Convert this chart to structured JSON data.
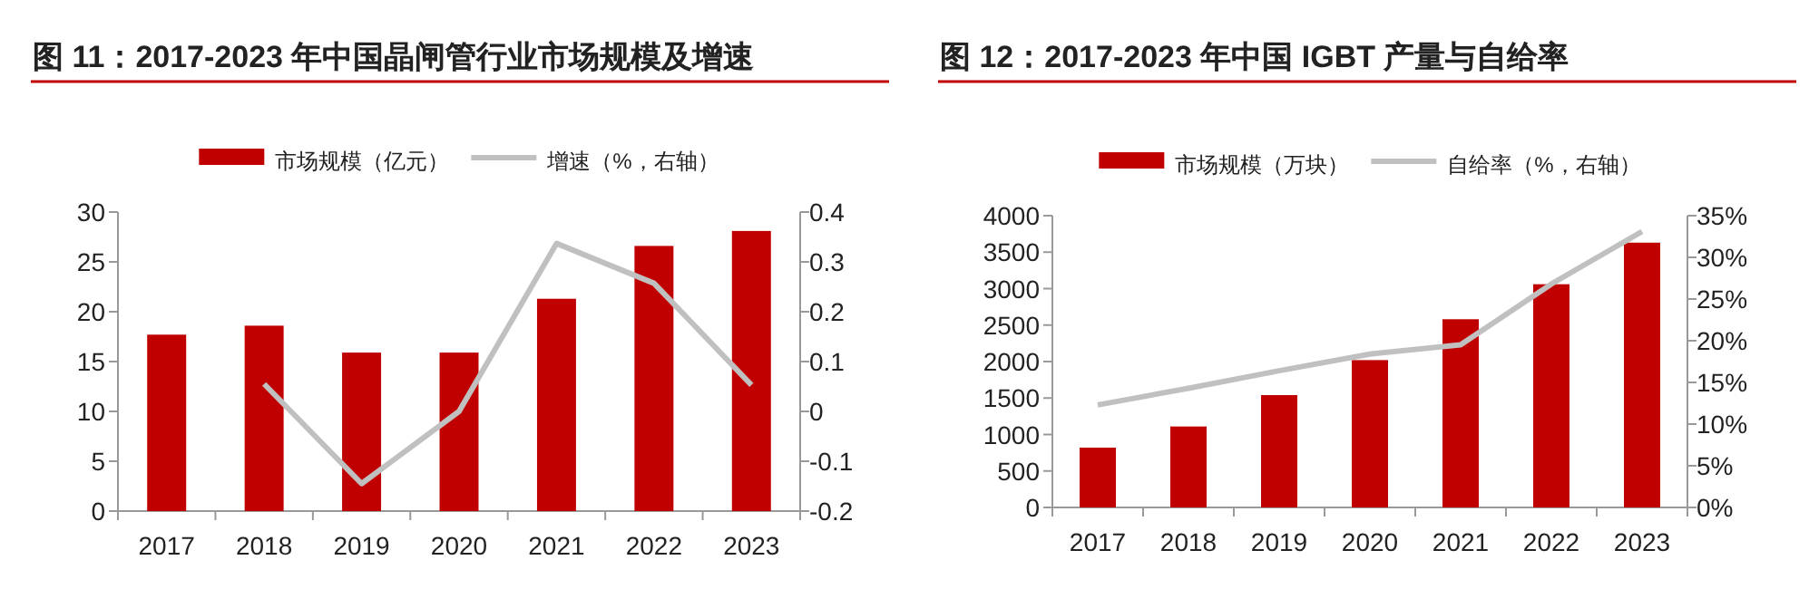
{
  "chart_data": [
    {
      "type": "bar",
      "title": "图 11：2017-2023 年中国晶闸管行业市场规模及增速",
      "categories": [
        "2017",
        "2018",
        "2019",
        "2020",
        "2021",
        "2022",
        "2023"
      ],
      "series": [
        {
          "name": "市场规模（亿元）",
          "color": "#c00000",
          "values": [
            17.7,
            18.6,
            15.9,
            15.9,
            21.3,
            26.6,
            28.1
          ]
        },
        {
          "name": "增速（%，右轴）",
          "type": "line",
          "axis": "y2",
          "color": "#c0c0c0",
          "values": [
            null,
            0.055,
            -0.145,
            0.0,
            0.337,
            0.257,
            0.053
          ]
        }
      ],
      "ylim": [
        0,
        30
      ],
      "yticks": [
        0,
        5,
        10,
        15,
        20,
        25,
        30
      ],
      "y2lim": [
        -0.2,
        0.4
      ],
      "y2ticks": [
        -0.2,
        -0.1,
        0,
        0.1,
        0.2,
        0.3,
        0.4
      ],
      "legend": "top",
      "grid": false,
      "marker": "none"
    },
    {
      "type": "bar",
      "title": "图 12：2017-2023 年中国 IGBT 产量与自给率",
      "categories": [
        "2017",
        "2018",
        "2019",
        "2020",
        "2021",
        "2022",
        "2023"
      ],
      "series": [
        {
          "name": "市场规模（万块）",
          "color": "#c00000",
          "values": [
            820,
            1110,
            1540,
            2020,
            2580,
            3060,
            3630
          ]
        },
        {
          "name": "自给率（%，右轴）",
          "type": "line",
          "axis": "y2",
          "color": "#c0c0c0",
          "values": [
            12.3,
            14.3,
            16.4,
            18.4,
            19.5,
            26.8,
            33.1
          ]
        }
      ],
      "ylim": [
        0,
        4000
      ],
      "yticks": [
        0,
        500,
        1000,
        1500,
        2000,
        2500,
        3000,
        3500,
        4000
      ],
      "y2lim": [
        0,
        35
      ],
      "y2ticks": [
        {
          "value": 0,
          "label": "0%"
        },
        {
          "value": 5,
          "label": "5%"
        },
        {
          "value": 10,
          "label": "10%"
        },
        {
          "value": 15,
          "label": "15%"
        },
        {
          "value": 20,
          "label": "20%"
        },
        {
          "value": 25,
          "label": "25%"
        },
        {
          "value": 30,
          "label": "30%"
        },
        {
          "value": 35,
          "label": "35%"
        }
      ],
      "legend": "top",
      "grid": false,
      "marker": "none"
    }
  ]
}
